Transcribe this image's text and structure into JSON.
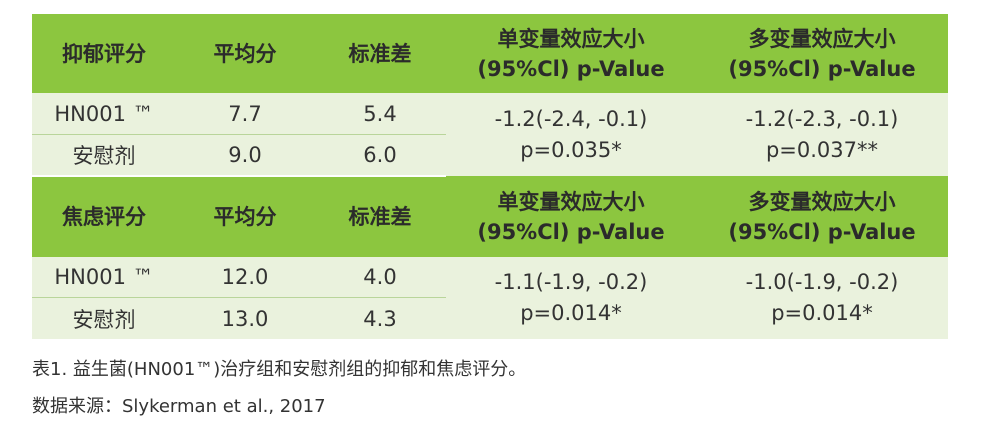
{
  "sections": [
    {
      "header": {
        "metric": "抑郁评分",
        "mean": "平均分",
        "sd": "标准差",
        "uni_line1": "单变量效应大小",
        "uni_line2": "(95%Cl) p-Value",
        "multi_line1": "多变量效应大小",
        "multi_line2": "(95%Cl) p-Value"
      },
      "rows": [
        {
          "group": "HN001 ™",
          "mean": "7.7",
          "sd": "5.4"
        },
        {
          "group": "安慰剂",
          "mean": "9.0",
          "sd": "6.0"
        }
      ],
      "uni": {
        "effect": "-1.2(-2.4, -0.1)",
        "p": "p=0.035*"
      },
      "multi": {
        "effect": "-1.2(-2.3, -0.1)",
        "p": "p=0.037**"
      }
    },
    {
      "header": {
        "metric": "焦虑评分",
        "mean": "平均分",
        "sd": "标准差",
        "uni_line1": "单变量效应大小",
        "uni_line2": "(95%Cl) p-Value",
        "multi_line1": "多变量效应大小",
        "multi_line2": "(95%Cl) p-Value"
      },
      "rows": [
        {
          "group": "HN001 ™",
          "mean": "12.0",
          "sd": "4.0"
        },
        {
          "group": "安慰剂",
          "mean": "13.0",
          "sd": "4.3"
        }
      ],
      "uni": {
        "effect": "-1.1(-1.9, -0.2)",
        "p": "p=0.014*"
      },
      "multi": {
        "effect": "-1.0(-1.9, -0.2)",
        "p": "p=0.014*"
      }
    }
  ],
  "caption": "表1. 益生菌(HN001™)治疗组和安慰剂组的抑郁和焦虑评分。",
  "source": "数据来源：Slykerman et al., 2017",
  "colors": {
    "header_bg": "#8cc63f",
    "body_bg": "#eaf2dd",
    "row_separator": "#b9d59a"
  }
}
